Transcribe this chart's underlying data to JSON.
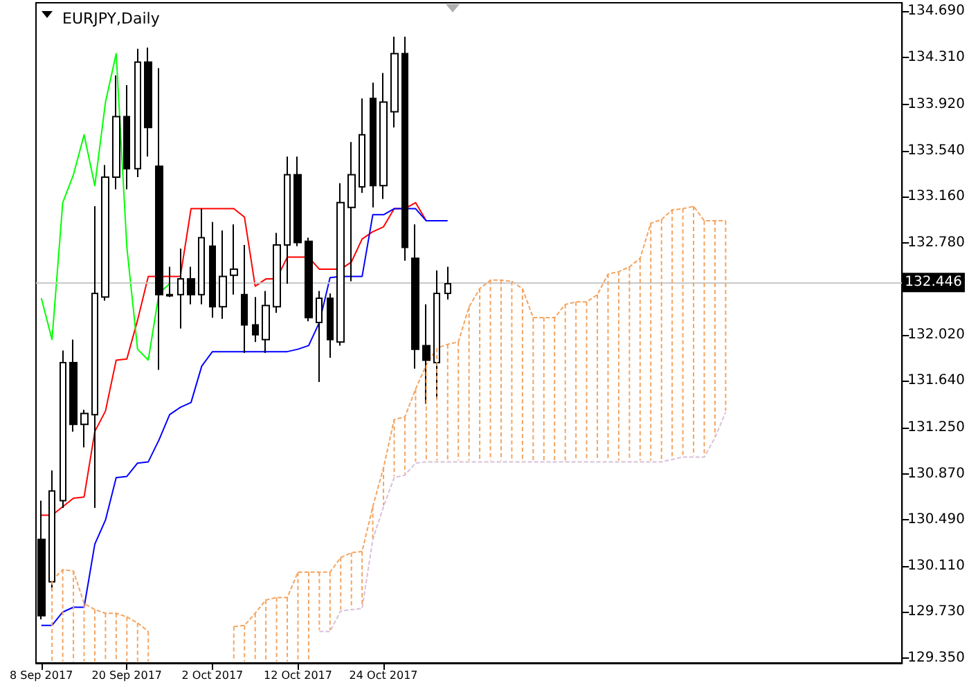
{
  "chart_data": {
    "type": "candlestick",
    "title": "EURJPY,Daily",
    "color": "#000000",
    "categories": [
      "8 Sep 2017",
      null,
      null,
      null,
      null,
      null,
      null,
      null,
      "20 Sep 2017",
      null,
      null,
      null,
      null,
      null,
      null,
      null,
      "2 Oct 2017",
      null,
      null,
      null,
      null,
      null,
      null,
      null,
      "12 Oct 2017",
      null,
      null,
      null,
      null,
      null,
      null,
      null,
      "24 Oct 2017",
      null,
      null,
      null,
      null,
      null,
      null,
      null,
      null,
      null,
      null,
      null,
      null,
      null,
      null,
      null,
      null,
      null,
      null,
      null,
      null,
      null,
      null,
      null,
      null,
      null,
      null,
      null,
      null,
      null,
      null,
      null,
      null,
      null,
      null,
      null,
      null,
      null,
      null,
      null,
      null,
      null,
      null,
      null,
      null,
      null,
      null,
      null,
      null
    ],
    "ohlc": [
      [
        130.33,
        130.65,
        129.67,
        129.7
      ],
      [
        129.98,
        130.9,
        129.91,
        130.73
      ],
      [
        130.65,
        131.89,
        130.59,
        131.79
      ],
      [
        131.79,
        131.98,
        131.22,
        131.28
      ],
      [
        131.28,
        131.4,
        131.09,
        131.37
      ],
      [
        131.36,
        133.08,
        130.59,
        132.36
      ],
      [
        132.33,
        133.42,
        132.3,
        133.32
      ],
      [
        133.32,
        134.16,
        133.22,
        133.82
      ],
      [
        133.82,
        134.08,
        133.22,
        133.39
      ],
      [
        133.39,
        134.38,
        133.32,
        134.27
      ],
      [
        134.27,
        134.39,
        133.49,
        133.73
      ],
      [
        133.41,
        134.22,
        131.73,
        132.35
      ],
      [
        132.34,
        132.58,
        132.33,
        132.35
      ],
      [
        132.35,
        132.73,
        132.07,
        132.48
      ],
      [
        132.48,
        132.58,
        132.27,
        132.35
      ],
      [
        132.35,
        133.06,
        132.27,
        132.82
      ],
      [
        132.75,
        132.95,
        132.16,
        132.25
      ],
      [
        132.25,
        132.88,
        132.15,
        132.5
      ],
      [
        132.51,
        132.93,
        132.35,
        132.56
      ],
      [
        132.35,
        132.76,
        131.87,
        132.1
      ],
      [
        132.1,
        132.33,
        131.96,
        132.02
      ],
      [
        131.98,
        132.38,
        131.87,
        132.26
      ],
      [
        132.25,
        132.86,
        132.2,
        132.76
      ],
      [
        132.76,
        133.49,
        132.44,
        133.34
      ],
      [
        133.34,
        133.49,
        132.75,
        132.78
      ],
      [
        132.79,
        132.82,
        132.13,
        132.16
      ],
      [
        132.12,
        132.38,
        131.63,
        132.32
      ],
      [
        132.32,
        132.36,
        131.83,
        131.98
      ],
      [
        131.96,
        133.27,
        131.93,
        133.11
      ],
      [
        133.07,
        133.61,
        132.46,
        133.34
      ],
      [
        133.24,
        133.97,
        133.19,
        133.67
      ],
      [
        133.97,
        134.1,
        133.07,
        133.25
      ],
      [
        133.25,
        134.18,
        133.14,
        133.94
      ],
      [
        133.86,
        134.48,
        133.73,
        134.34
      ],
      [
        134.34,
        134.48,
        132.63,
        132.74
      ],
      [
        132.65,
        132.93,
        131.74,
        131.9
      ],
      [
        131.93,
        132.27,
        131.45,
        131.81
      ],
      [
        131.79,
        132.55,
        131.49,
        132.36
      ],
      [
        132.36,
        132.58,
        132.31,
        132.44
      ],
      null,
      null,
      null,
      null,
      null,
      null,
      null,
      null,
      null,
      null,
      null,
      null,
      null,
      null,
      null,
      null,
      null,
      null,
      null,
      null,
      null,
      null,
      null,
      null,
      null,
      null,
      null,
      null,
      null,
      null,
      null,
      null,
      null,
      null,
      null,
      null,
      null,
      null,
      null,
      null,
      null,
      null
    ],
    "series": [
      {
        "type": "line",
        "color": "#ff0000",
        "values": [
          130.53,
          130.53,
          130.6,
          130.67,
          130.68,
          131.22,
          131.39,
          131.81,
          131.82,
          132.14,
          132.5,
          132.5,
          132.5,
          132.5,
          133.06,
          133.06,
          133.06,
          133.06,
          133.06,
          132.99,
          132.42,
          132.48,
          132.48,
          132.66,
          132.66,
          132.66,
          132.56,
          132.56,
          132.56,
          132.62,
          132.81,
          132.87,
          132.91,
          133.06,
          133.06,
          133.11,
          132.96,
          null,
          null,
          null,
          null,
          null,
          null,
          null,
          null,
          null,
          null,
          null,
          null,
          null,
          null,
          null,
          null,
          null,
          null,
          null,
          null,
          null,
          null,
          null,
          null,
          null,
          null,
          null,
          null,
          null,
          null,
          null,
          null,
          null,
          null,
          null,
          null,
          null,
          null,
          null,
          null,
          null,
          null,
          null,
          null
        ]
      },
      {
        "type": "line",
        "color": "#0000ff",
        "values": [
          129.62,
          129.62,
          129.73,
          129.77,
          129.77,
          130.29,
          130.49,
          130.84,
          130.85,
          130.96,
          130.97,
          131.15,
          131.36,
          131.42,
          131.46,
          131.76,
          131.88,
          131.88,
          131.88,
          131.88,
          131.88,
          131.88,
          131.88,
          131.88,
          131.9,
          131.93,
          132.12,
          132.49,
          132.5,
          132.5,
          132.5,
          133.01,
          133.01,
          133.06,
          133.06,
          133.06,
          132.96,
          132.96,
          132.96,
          null,
          null,
          null,
          null,
          null,
          null,
          null,
          null,
          null,
          null,
          null,
          null,
          null,
          null,
          null,
          null,
          null,
          null,
          null,
          null,
          null,
          null,
          null,
          null,
          null,
          null,
          null,
          null,
          null,
          null,
          null,
          null,
          null,
          null,
          null,
          null,
          null,
          null,
          null,
          null,
          null,
          null
        ]
      },
      {
        "type": "line",
        "color": "#00ff00",
        "values": [
          132.32,
          131.98,
          133.11,
          133.34,
          133.67,
          133.25,
          133.94,
          134.34,
          132.74,
          131.9,
          131.81,
          132.36,
          132.44,
          null,
          null,
          null,
          null,
          null,
          null,
          null,
          null,
          null,
          null,
          null,
          null,
          null,
          null,
          null,
          null,
          null,
          null,
          null,
          null,
          null,
          null,
          null,
          null,
          null,
          null,
          null,
          null,
          null,
          null,
          null,
          null,
          null,
          null,
          null,
          null,
          null,
          null,
          null,
          null,
          null,
          null,
          null,
          null,
          null,
          null,
          null,
          null,
          null,
          null,
          null,
          null,
          null,
          null,
          null,
          null,
          null,
          null,
          null,
          null,
          null,
          null,
          null,
          null,
          null,
          null,
          null,
          null
        ]
      },
      {
        "type": "line",
        "color": "#f4a460",
        "line_style": "dashed",
        "values": [
          null,
          129.99,
          130.08,
          130.07,
          129.8,
          129.75,
          129.72,
          129.72,
          129.69,
          129.64,
          129.57,
          null,
          null,
          null,
          null,
          null,
          null,
          null,
          129.61,
          129.62,
          129.72,
          129.83,
          129.85,
          129.85,
          130.06,
          130.06,
          130.06,
          130.06,
          130.18,
          130.22,
          130.23,
          130.6,
          130.92,
          131.32,
          131.34,
          131.57,
          131.77,
          131.91,
          131.94,
          131.96,
          132.25,
          132.4,
          132.47,
          132.47,
          132.46,
          132.4,
          132.16,
          132.16,
          132.16,
          132.27,
          132.29,
          132.29,
          132.35,
          132.52,
          132.54,
          132.58,
          132.65,
          132.94,
          132.97,
          133.05,
          133.06,
          133.08,
          132.96,
          132.96,
          132.96,
          null,
          null,
          null,
          null,
          null,
          null,
          null,
          null,
          null,
          null,
          null,
          null,
          null,
          null,
          null,
          null
        ]
      },
      {
        "type": "line",
        "color": "#d8bfd8",
        "line_style": "dashed",
        "values": [
          null,
          null,
          null,
          null,
          null,
          null,
          null,
          null,
          null,
          null,
          null,
          null,
          null,
          null,
          null,
          null,
          null,
          null,
          null,
          null,
          null,
          null,
          null,
          null,
          null,
          null,
          129.57,
          129.57,
          129.74,
          129.75,
          129.76,
          130.33,
          130.6,
          130.84,
          130.86,
          130.96,
          130.97,
          130.97,
          130.97,
          130.97,
          130.97,
          130.97,
          130.97,
          130.97,
          130.97,
          130.97,
          130.97,
          130.97,
          130.97,
          130.97,
          130.97,
          130.97,
          130.97,
          130.97,
          130.97,
          130.97,
          130.97,
          130.97,
          130.97,
          130.99,
          131.01,
          131.01,
          131.01,
          131.17,
          131.38,
          null,
          null,
          null,
          null,
          null,
          null,
          null,
          null,
          null,
          null,
          null,
          null,
          null,
          null,
          null,
          null
        ]
      }
    ],
    "ylim": [
      129.31,
      134.76
    ],
    "yticks": [
      {
        "value": 134.69,
        "label": "134.690"
      },
      {
        "value": 134.31,
        "label": "134.310"
      },
      {
        "value": 133.92,
        "label": "133.920"
      },
      {
        "value": 133.54,
        "label": "133.540"
      },
      {
        "value": 133.16,
        "label": "133.160"
      },
      {
        "value": 132.78,
        "label": "132.780"
      },
      {
        "value": 132.02,
        "label": "132.020"
      },
      {
        "value": 131.64,
        "label": "131.640"
      },
      {
        "value": 131.25,
        "label": "131.250"
      },
      {
        "value": 130.87,
        "label": "130.870"
      },
      {
        "value": 130.49,
        "label": "130.490"
      },
      {
        "value": 130.11,
        "label": "130.110"
      },
      {
        "value": 129.73,
        "label": "129.730"
      },
      {
        "value": 129.35,
        "label": "129.350"
      }
    ],
    "ref_lines": [
      {
        "axis": "y",
        "value": 132.446,
        "label": "132.446",
        "color": "#c8c8c8"
      }
    ],
    "grid": false,
    "marker": "none"
  }
}
